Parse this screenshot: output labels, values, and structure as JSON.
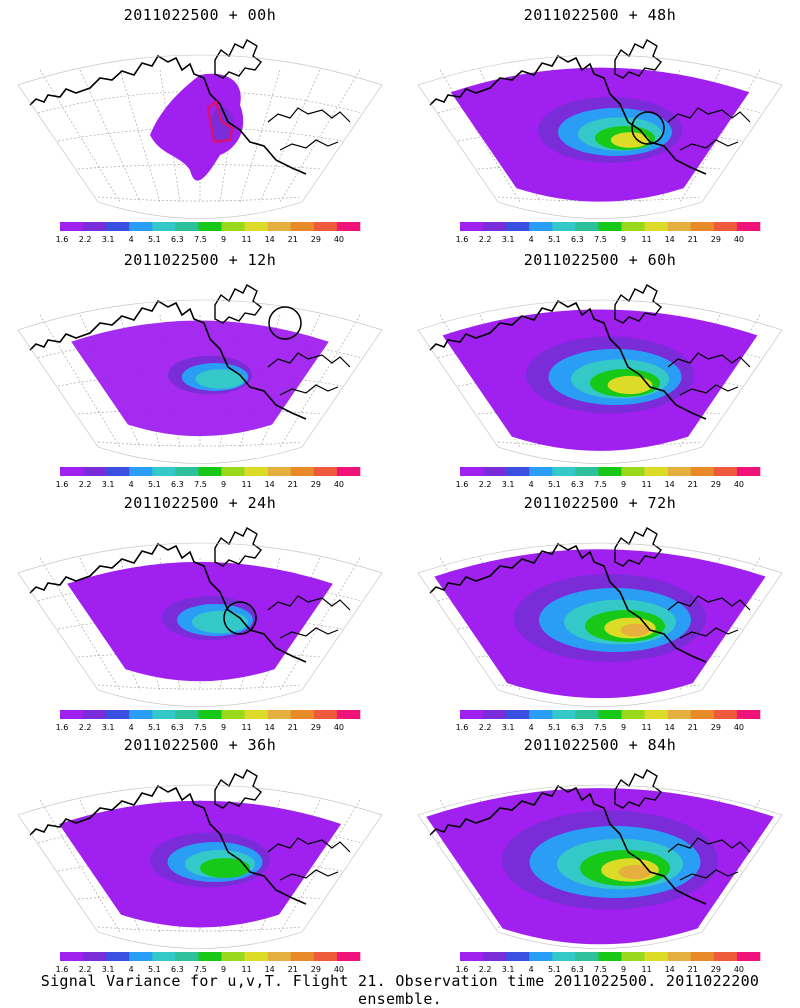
{
  "panels": [
    {
      "title": "2011022500 + 00h",
      "circle": false,
      "box": true,
      "intensity": 0.25
    },
    {
      "title": "2011022500 + 48h",
      "circle": true,
      "box": false,
      "intensity": 0.6
    },
    {
      "title": "2011022500 + 12h",
      "circle": true,
      "box": false,
      "intensity": 0.35
    },
    {
      "title": "2011022500 + 60h",
      "circle": false,
      "box": false,
      "intensity": 0.7
    },
    {
      "title": "2011022500 + 24h",
      "circle": true,
      "box": false,
      "intensity": 0.4
    },
    {
      "title": "2011022500 + 72h",
      "circle": false,
      "box": false,
      "intensity": 0.8
    },
    {
      "title": "2011022500 + 36h",
      "circle": false,
      "box": false,
      "intensity": 0.5
    },
    {
      "title": "2011022500 + 84h",
      "circle": false,
      "box": false,
      "intensity": 0.9
    }
  ],
  "colorbar": {
    "labels": [
      "1.6",
      "2.2",
      "3.1",
      "4",
      "5.1",
      "6.3",
      "7.5",
      "9",
      "11",
      "14",
      "21",
      "29",
      "40"
    ],
    "colors": [
      "#a020f0",
      "#7a2cd8",
      "#3b4fe0",
      "#2a9df4",
      "#35c8c8",
      "#2ec09a",
      "#18c818",
      "#9ad81e",
      "#dcdc28",
      "#e6b040",
      "#e88a28",
      "#f05a3c",
      "#f0147a"
    ]
  },
  "caption": "Signal Variance for u,v,T. Flight 21. Observation time 2011022500. 2011022200 ensemble."
}
